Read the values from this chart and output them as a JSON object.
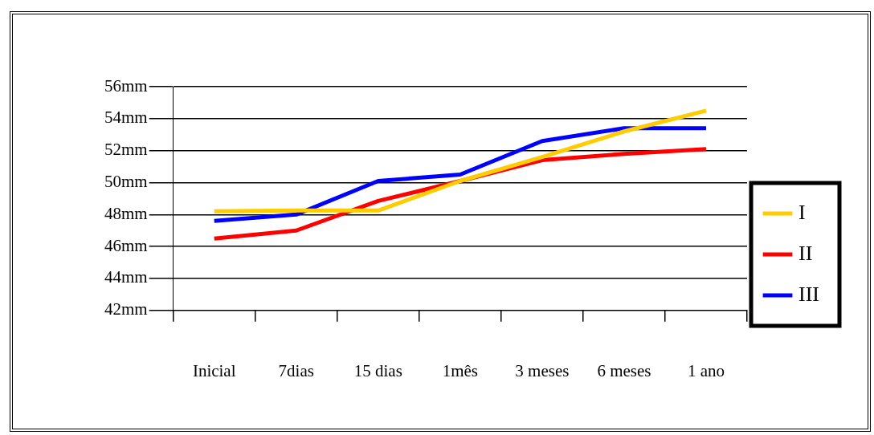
{
  "chart_data": {
    "type": "line",
    "categories": [
      "Inicial",
      "7dias",
      "15 dias",
      "1mês",
      "3 meses",
      "6 meses",
      "1 ano"
    ],
    "series": [
      {
        "name": "I",
        "color": "#ffcc00",
        "values": [
          48.2,
          48.25,
          48.25,
          50.1,
          51.6,
          53.2,
          54.5
        ]
      },
      {
        "name": "II",
        "color": "#ff0000",
        "values": [
          46.5,
          47.0,
          48.85,
          50.1,
          51.4,
          51.8,
          52.1
        ]
      },
      {
        "name": "III",
        "color": "#0000ff",
        "values": [
          47.6,
          48.0,
          50.1,
          50.5,
          52.6,
          53.4,
          53.4
        ]
      }
    ],
    "ylim": [
      42,
      56
    ],
    "yticks": [
      {
        "value": 42,
        "label": "42mm"
      },
      {
        "value": 44,
        "label": "44mm"
      },
      {
        "value": 46,
        "label": "46mm"
      },
      {
        "value": 48,
        "label": "48mm"
      },
      {
        "value": 50,
        "label": "50mm"
      },
      {
        "value": 52,
        "label": "52mm"
      },
      {
        "value": 54,
        "label": "54mm"
      },
      {
        "value": 56,
        "label": "56mm"
      }
    ],
    "grid": "y",
    "legend": "right",
    "marker": "none",
    "line_style": "solid"
  }
}
